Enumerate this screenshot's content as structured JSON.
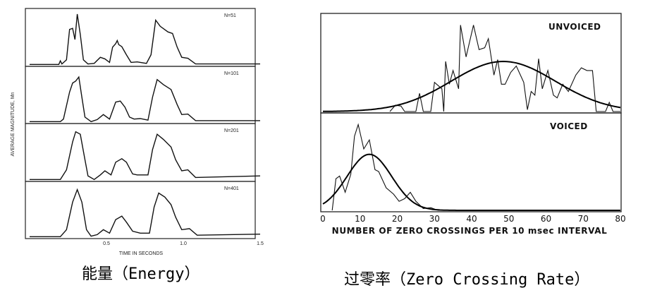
{
  "captions": {
    "energy": "能量（Energy）",
    "zcr": "过零率（Zero Crossing Rate）"
  },
  "chart_data": [
    {
      "type": "line",
      "title": "Energy",
      "xlabel": "TIME IN SECONDS",
      "ylabel": "AVERAGE MAGNITUDE, Mn",
      "xlim": [
        0,
        1.5
      ],
      "xticks": [
        "0.5",
        "1.0",
        "1.5"
      ],
      "xtick_values": [
        0.5,
        1.0,
        1.5
      ],
      "panels": [
        {
          "label": "N=51",
          "points": [
            [
              0,
              0.01
            ],
            [
              0.19,
              0.01
            ],
            [
              0.2,
              0.08
            ],
            [
              0.21,
              0.02
            ],
            [
              0.24,
              0.1
            ],
            [
              0.26,
              0.7
            ],
            [
              0.28,
              0.72
            ],
            [
              0.295,
              0.5
            ],
            [
              0.31,
              1.0
            ],
            [
              0.33,
              0.6
            ],
            [
              0.35,
              0.1
            ],
            [
              0.38,
              0.02
            ],
            [
              0.42,
              0.03
            ],
            [
              0.46,
              0.15
            ],
            [
              0.49,
              0.12
            ],
            [
              0.52,
              0.05
            ],
            [
              0.54,
              0.35
            ],
            [
              0.56,
              0.42
            ],
            [
              0.57,
              0.48
            ],
            [
              0.58,
              0.4
            ],
            [
              0.6,
              0.36
            ],
            [
              0.63,
              0.2
            ],
            [
              0.66,
              0.05
            ],
            [
              0.7,
              0.06
            ],
            [
              0.76,
              0.03
            ],
            [
              0.79,
              0.2
            ],
            [
              0.82,
              0.88
            ],
            [
              0.85,
              0.76
            ],
            [
              0.9,
              0.65
            ],
            [
              0.93,
              0.62
            ],
            [
              0.96,
              0.35
            ],
            [
              0.99,
              0.15
            ],
            [
              1.03,
              0.13
            ],
            [
              1.08,
              0.02
            ],
            [
              1.5,
              0.02
            ]
          ]
        },
        {
          "label": "N=101",
          "points": [
            [
              0,
              0.01
            ],
            [
              0.2,
              0.01
            ],
            [
              0.22,
              0.06
            ],
            [
              0.26,
              0.6
            ],
            [
              0.28,
              0.78
            ],
            [
              0.3,
              0.82
            ],
            [
              0.32,
              0.9
            ],
            [
              0.34,
              0.5
            ],
            [
              0.36,
              0.1
            ],
            [
              0.4,
              0.01
            ],
            [
              0.44,
              0.05
            ],
            [
              0.48,
              0.15
            ],
            [
              0.52,
              0.06
            ],
            [
              0.56,
              0.4
            ],
            [
              0.59,
              0.42
            ],
            [
              0.62,
              0.3
            ],
            [
              0.65,
              0.1
            ],
            [
              0.68,
              0.06
            ],
            [
              0.72,
              0.07
            ],
            [
              0.77,
              0.04
            ],
            [
              0.8,
              0.5
            ],
            [
              0.83,
              0.85
            ],
            [
              0.87,
              0.75
            ],
            [
              0.92,
              0.65
            ],
            [
              0.96,
              0.35
            ],
            [
              0.99,
              0.15
            ],
            [
              1.03,
              0.16
            ],
            [
              1.08,
              0.03
            ],
            [
              1.5,
              0.03
            ]
          ]
        },
        {
          "label": "N=201",
          "points": [
            [
              0,
              0.01
            ],
            [
              0.2,
              0.01
            ],
            [
              0.24,
              0.2
            ],
            [
              0.28,
              0.75
            ],
            [
              0.3,
              0.95
            ],
            [
              0.33,
              0.9
            ],
            [
              0.36,
              0.4
            ],
            [
              0.38,
              0.08
            ],
            [
              0.42,
              0.01
            ],
            [
              0.46,
              0.1
            ],
            [
              0.49,
              0.18
            ],
            [
              0.53,
              0.1
            ],
            [
              0.56,
              0.35
            ],
            [
              0.6,
              0.42
            ],
            [
              0.63,
              0.35
            ],
            [
              0.67,
              0.12
            ],
            [
              0.7,
              0.1
            ],
            [
              0.77,
              0.1
            ],
            [
              0.8,
              0.6
            ],
            [
              0.83,
              0.9
            ],
            [
              0.87,
              0.8
            ],
            [
              0.92,
              0.65
            ],
            [
              0.95,
              0.4
            ],
            [
              0.99,
              0.18
            ],
            [
              1.03,
              0.2
            ],
            [
              1.08,
              0.05
            ],
            [
              1.5,
              0.08
            ]
          ]
        },
        {
          "label": "N=401",
          "points": [
            [
              0,
              0.01
            ],
            [
              0.2,
              0.01
            ],
            [
              0.24,
              0.15
            ],
            [
              0.28,
              0.7
            ],
            [
              0.31,
              0.95
            ],
            [
              0.34,
              0.7
            ],
            [
              0.37,
              0.15
            ],
            [
              0.4,
              0.02
            ],
            [
              0.44,
              0.05
            ],
            [
              0.48,
              0.15
            ],
            [
              0.52,
              0.08
            ],
            [
              0.56,
              0.35
            ],
            [
              0.6,
              0.42
            ],
            [
              0.63,
              0.3
            ],
            [
              0.67,
              0.12
            ],
            [
              0.72,
              0.08
            ],
            [
              0.78,
              0.08
            ],
            [
              0.81,
              0.6
            ],
            [
              0.84,
              0.88
            ],
            [
              0.88,
              0.8
            ],
            [
              0.92,
              0.65
            ],
            [
              0.95,
              0.4
            ],
            [
              0.99,
              0.15
            ],
            [
              1.04,
              0.17
            ],
            [
              1.09,
              0.04
            ],
            [
              1.5,
              0.06
            ]
          ]
        }
      ]
    },
    {
      "type": "line",
      "title": "Zero Crossing Rate",
      "xlabel": "NUMBER OF ZERO CROSSINGS PER 10 msec INTERVAL",
      "xlim": [
        0,
        80
      ],
      "xticks": [
        "0",
        "10",
        "20",
        "30",
        "40",
        "50",
        "60",
        "70",
        "80"
      ],
      "xtick_values": [
        0,
        10,
        20,
        30,
        40,
        50,
        60,
        70,
        80
      ],
      "panels": [
        {
          "label": "UNVOICED",
          "gaussian": {
            "mean": 48.5,
            "sd": 14,
            "peak": 0.55
          },
          "points": [
            [
              18,
              0
            ],
            [
              19.5,
              0.07
            ],
            [
              21,
              0.06
            ],
            [
              22,
              0
            ],
            [
              25,
              0
            ],
            [
              26,
              0.2
            ],
            [
              27,
              0
            ],
            [
              29,
              0
            ],
            [
              30,
              0.32
            ],
            [
              32,
              0.25
            ],
            [
              32.5,
              0
            ],
            [
              33,
              0.55
            ],
            [
              34,
              0.3
            ],
            [
              35,
              0.45
            ],
            [
              36.5,
              0.25
            ],
            [
              37,
              0.95
            ],
            [
              38.5,
              0.6
            ],
            [
              40.5,
              0.95
            ],
            [
              42,
              0.68
            ],
            [
              43.5,
              0.7
            ],
            [
              44.5,
              0.8
            ],
            [
              46,
              0.4
            ],
            [
              47,
              0.57
            ],
            [
              48,
              0.3
            ],
            [
              49,
              0.3
            ],
            [
              50.5,
              0.43
            ],
            [
              52,
              0.5
            ],
            [
              54,
              0.32
            ],
            [
              55,
              0.02
            ],
            [
              56,
              0.22
            ],
            [
              57,
              0.18
            ],
            [
              58,
              0.58
            ],
            [
              59,
              0.25
            ],
            [
              60.5,
              0.45
            ],
            [
              62,
              0.18
            ],
            [
              63,
              0.15
            ],
            [
              64.5,
              0.3
            ],
            [
              66,
              0.22
            ],
            [
              68,
              0.4
            ],
            [
              69.5,
              0.48
            ],
            [
              71,
              0.45
            ],
            [
              72.5,
              0.45
            ],
            [
              73.5,
              0
            ],
            [
              76,
              0
            ],
            [
              77,
              0.1
            ],
            [
              78,
              0
            ],
            [
              80,
              0
            ]
          ]
        },
        {
          "label": "VOICED",
          "gaussian": {
            "mean": 12.5,
            "sd": 6,
            "peak": 0.62
          },
          "points": [
            [
              2.5,
              0
            ],
            [
              3.5,
              0.35
            ],
            [
              4.5,
              0.38
            ],
            [
              6,
              0.2
            ],
            [
              7.5,
              0.4
            ],
            [
              8.5,
              0.82
            ],
            [
              9.5,
              0.95
            ],
            [
              11,
              0.68
            ],
            [
              12.5,
              0.78
            ],
            [
              14,
              0.45
            ],
            [
              15,
              0.43
            ],
            [
              17,
              0.25
            ],
            [
              19,
              0.18
            ],
            [
              20.5,
              0.1
            ],
            [
              22,
              0.13
            ],
            [
              23.5,
              0.2
            ],
            [
              25,
              0.1
            ],
            [
              27,
              0.02
            ],
            [
              29,
              0.03
            ],
            [
              31,
              0
            ],
            [
              32,
              0
            ]
          ]
        }
      ]
    }
  ]
}
